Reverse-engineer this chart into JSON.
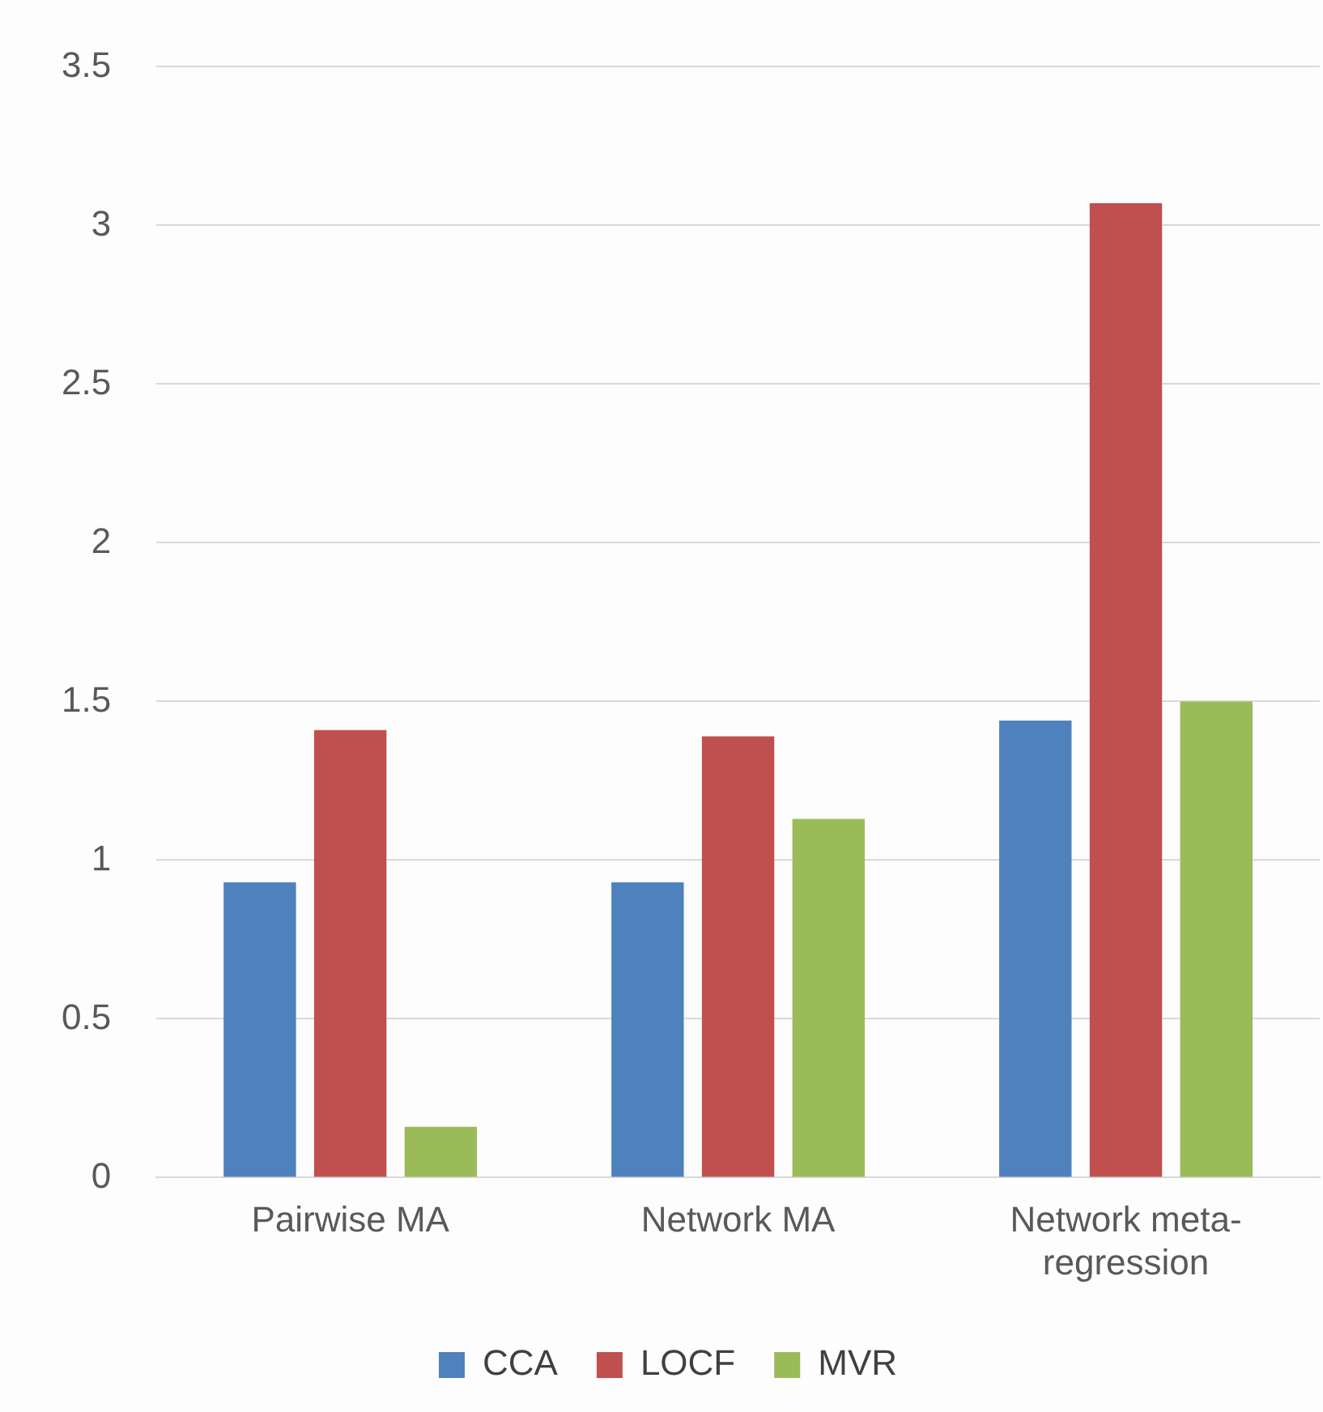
{
  "chart_data": {
    "type": "bar",
    "categories": [
      "Pairwise MA",
      "Network MA",
      "Network meta-regression"
    ],
    "series": [
      {
        "name": "CCA",
        "color": "#4f81bd",
        "values": [
          0.93,
          0.93,
          1.44
        ]
      },
      {
        "name": "LOCF",
        "color": "#c0504d",
        "values": [
          1.41,
          1.39,
          3.07
        ]
      },
      {
        "name": "MVR",
        "color": "#9bbb59",
        "values": [
          0.16,
          1.13,
          1.5
        ]
      }
    ],
    "ylim": [
      0,
      3.5
    ],
    "yticks": [
      0,
      0.5,
      1,
      1.5,
      2,
      2.5,
      3,
      3.5
    ],
    "grid": "y",
    "legend": "bottom"
  }
}
